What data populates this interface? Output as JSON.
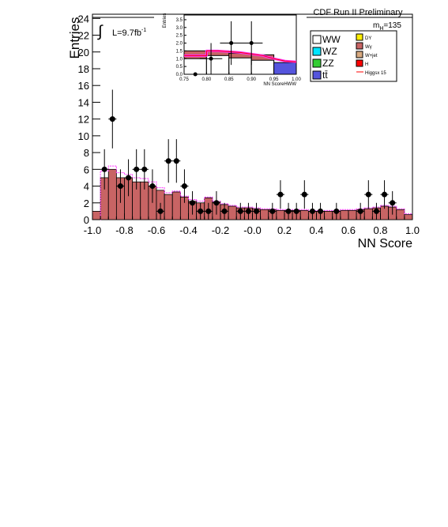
{
  "figure": {
    "header": "CDF Run II Preliminary",
    "mass_label_base": "m",
    "mass_label_sub": "H",
    "mass_label_value": "=135",
    "lumi_prefix": "L=9.7fb",
    "lumi_exponent": "-1",
    "integral_symbol": "∫",
    "colors": {
      "signal_red_fill": "#c86464",
      "higgs_line": "#ff0000",
      "magenta_band": "#ff33ff",
      "data_marker": "#000000"
    }
  },
  "legend": {
    "entries": [
      {
        "label": "WW",
        "color": "#ffffff"
      },
      {
        "label": "WZ",
        "color": "#00e5ff"
      },
      {
        "label": "ZZ",
        "color": "#33cc33"
      },
      {
        "label": "tt̄",
        "color": "#5555dd"
      },
      {
        "label": "DY",
        "color": "#ffee00"
      },
      {
        "label": "Wγ",
        "color": "#c86464"
      },
      {
        "label": "W+jet",
        "color": "#d8aa80"
      },
      {
        "label": "H",
        "color": "#ff0000"
      },
      {
        "label": "Higgsx 15",
        "color": "#ff0000"
      }
    ]
  },
  "chart_data": [
    {
      "type": "bar",
      "title": "",
      "xlabel": "NN Score",
      "ylabel": "Entries",
      "xlim": [
        -1.0,
        1.0
      ],
      "ylim": [
        0,
        24.5
      ],
      "xticks": [
        "-1.0",
        "-0.8",
        "-0.6",
        "-0.4",
        "-0.2",
        "-0.0",
        "0.2",
        "0.4",
        "0.6",
        "0.8",
        "1.0"
      ],
      "yticks": [
        "0",
        "2",
        "4",
        "6",
        "8",
        "10",
        "12",
        "14",
        "16",
        "18",
        "20",
        "22",
        "24"
      ],
      "bin_edges": [
        -1.0,
        -0.95,
        -0.9,
        -0.85,
        -0.8,
        -0.75,
        -0.7,
        -0.65,
        -0.6,
        -0.55,
        -0.5,
        -0.45,
        -0.4,
        -0.35,
        -0.3,
        -0.25,
        -0.2,
        -0.15,
        -0.1,
        -0.05,
        0.0,
        0.05,
        0.1,
        0.15,
        0.2,
        0.25,
        0.3,
        0.35,
        0.4,
        0.45,
        0.5,
        0.55,
        0.6,
        0.65,
        0.7,
        0.75,
        0.8,
        0.85,
        0.9,
        0.95,
        1.0
      ],
      "background": [
        1.0,
        5.0,
        6.0,
        5.0,
        5.0,
        4.5,
        4.5,
        4.0,
        3.5,
        3.0,
        3.3,
        2.7,
        2.2,
        2.0,
        2.6,
        2.1,
        1.8,
        1.6,
        1.4,
        1.4,
        1.3,
        1.2,
        1.2,
        1.1,
        1.1,
        1.1,
        1.1,
        1.0,
        1.0,
        1.0,
        1.0,
        1.1,
        1.1,
        1.2,
        1.3,
        1.4,
        1.6,
        1.5,
        1.2,
        0.6
      ],
      "higgs_x15": [
        0.0,
        5.8,
        6.4,
        5.6,
        5.4,
        5.0,
        4.9,
        4.5,
        3.8,
        3.2,
        3.4,
        2.8,
        2.4,
        2.2,
        2.7,
        2.2,
        1.9,
        1.7,
        1.5,
        1.5,
        1.4,
        1.3,
        1.3,
        1.2,
        1.2,
        1.2,
        1.2,
        1.1,
        1.1,
        1.1,
        1.1,
        1.2,
        1.2,
        1.3,
        1.4,
        1.5,
        1.7,
        1.6,
        1.3,
        0.7
      ],
      "data_points": [
        {
          "x": -0.925,
          "y": 6,
          "err": 2.4
        },
        {
          "x": -0.875,
          "y": 12,
          "err": 3.5
        },
        {
          "x": -0.825,
          "y": 4,
          "err": 2.0
        },
        {
          "x": -0.775,
          "y": 5,
          "err": 2.2
        },
        {
          "x": -0.725,
          "y": 6,
          "err": 2.4
        },
        {
          "x": -0.675,
          "y": 6,
          "err": 2.4
        },
        {
          "x": -0.625,
          "y": 4,
          "err": 2.0
        },
        {
          "x": -0.575,
          "y": 1,
          "err": 1.0
        },
        {
          "x": -0.525,
          "y": 7,
          "err": 2.6
        },
        {
          "x": -0.475,
          "y": 7,
          "err": 2.6
        },
        {
          "x": -0.425,
          "y": 4,
          "err": 2.0
        },
        {
          "x": -0.375,
          "y": 2,
          "err": 1.4
        },
        {
          "x": -0.325,
          "y": 1,
          "err": 1.0
        },
        {
          "x": -0.275,
          "y": 1,
          "err": 1.0
        },
        {
          "x": -0.225,
          "y": 2,
          "err": 1.4
        },
        {
          "x": -0.175,
          "y": 1,
          "err": 1.0
        },
        {
          "x": -0.075,
          "y": 1,
          "err": 1.0
        },
        {
          "x": -0.025,
          "y": 1,
          "err": 1.0
        },
        {
          "x": 0.025,
          "y": 1,
          "err": 1.0
        },
        {
          "x": 0.125,
          "y": 1,
          "err": 1.0
        },
        {
          "x": 0.175,
          "y": 3,
          "err": 1.7
        },
        {
          "x": 0.225,
          "y": 1,
          "err": 1.0
        },
        {
          "x": 0.275,
          "y": 1,
          "err": 1.0
        },
        {
          "x": 0.325,
          "y": 3,
          "err": 1.7
        },
        {
          "x": 0.375,
          "y": 1,
          "err": 1.0
        },
        {
          "x": 0.425,
          "y": 1,
          "err": 1.0
        },
        {
          "x": 0.525,
          "y": 1,
          "err": 1.0
        },
        {
          "x": 0.675,
          "y": 1,
          "err": 1.0
        },
        {
          "x": 0.725,
          "y": 3,
          "err": 1.7
        },
        {
          "x": 0.775,
          "y": 1,
          "err": 1.0
        },
        {
          "x": 0.825,
          "y": 3,
          "err": 1.7
        },
        {
          "x": 0.875,
          "y": 2,
          "err": 1.4
        }
      ]
    },
    {
      "type": "bar",
      "title": "",
      "xlabel": "NN ScoreHWW",
      "ylabel": "Entries",
      "xlim": [
        0.75,
        1.0
      ],
      "ylim": [
        0,
        3.8
      ],
      "xticks": [
        "0.75",
        "0.80",
        "0.85",
        "0.90",
        "0.95",
        "1.00"
      ],
      "yticks": [
        "0.0",
        "0.5",
        "1.0",
        "1.5",
        "2.0",
        "2.5",
        "3.0",
        "3.5"
      ],
      "bin_edges": [
        0.75,
        0.8,
        0.85,
        0.9,
        0.95,
        1.0
      ],
      "background": [
        1.1,
        1.25,
        1.1,
        0.95,
        0.75
      ],
      "ww_component": [
        1.0,
        1.2,
        1.05,
        0.9,
        0.0
      ],
      "tt_component": [
        0.0,
        0.0,
        0.0,
        0.0,
        0.75
      ],
      "red_component": [
        1.5,
        1.5,
        1.35,
        1.25,
        0.0
      ],
      "higgs_line": [
        {
          "x": 0.75,
          "y": 1.2
        },
        {
          "x": 0.8,
          "y": 1.2
        },
        {
          "x": 0.8,
          "y": 1.5
        },
        {
          "x": 0.825,
          "y": 1.5
        },
        {
          "x": 0.85,
          "y": 1.45
        },
        {
          "x": 0.875,
          "y": 1.4
        },
        {
          "x": 0.9,
          "y": 1.3
        },
        {
          "x": 0.925,
          "y": 1.2
        },
        {
          "x": 0.95,
          "y": 1.0
        },
        {
          "x": 0.975,
          "y": 0.85
        },
        {
          "x": 1.0,
          "y": 0.8
        }
      ],
      "data_points": [
        {
          "x": 0.775,
          "y": 0.0,
          "err": 0.0
        },
        {
          "x": 0.81,
          "y": 1.0,
          "err": 1.0
        },
        {
          "x": 0.855,
          "y": 2.0,
          "err": 1.4
        },
        {
          "x": 0.9,
          "y": 2.0,
          "err": 1.4
        }
      ]
    }
  ]
}
